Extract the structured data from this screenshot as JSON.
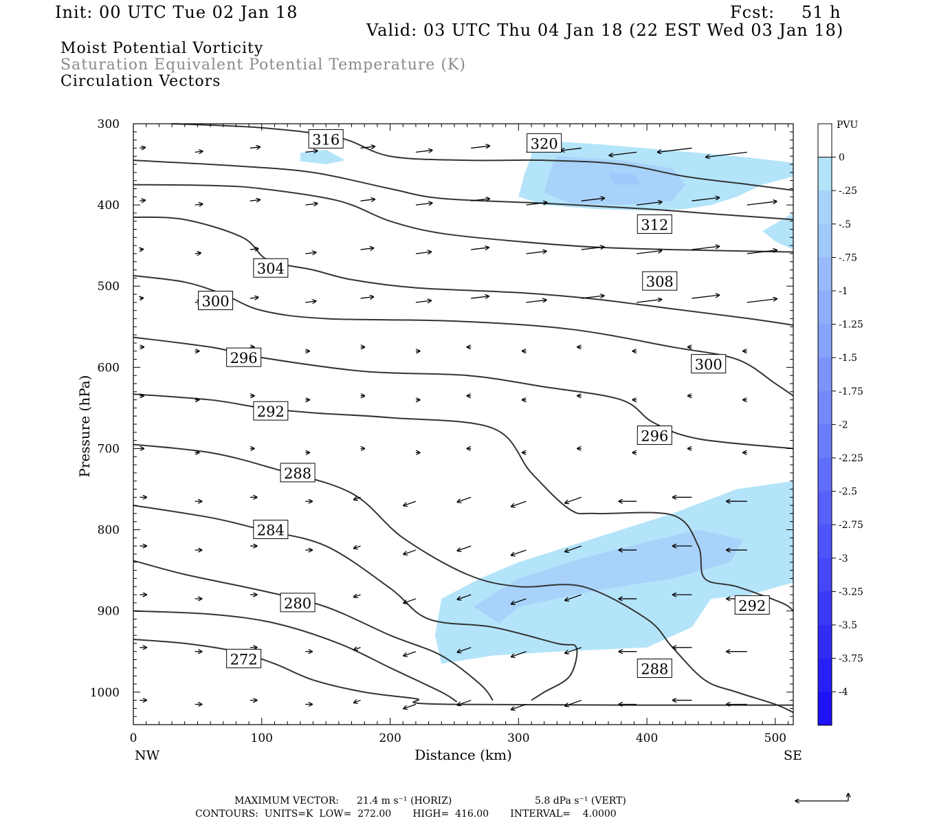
{
  "header": {
    "init": "Init: 00 UTC Tue 02 Jan 18",
    "fcst_label": "Fcst:",
    "fcst_value": "51 h",
    "valid": "Valid: 03 UTC Thu 04 Jan 18 (22 EST Wed 03 Jan 18)",
    "field1": "Moist Potential Vorticity",
    "field2": "Saturation Equivalent Potential Temperature (K)",
    "field3": "Circulation Vectors"
  },
  "footer": {
    "max_vector_label": "MAXIMUM VECTOR:",
    "horiz_value": "21.4 m s⁻¹ (HORIZ)",
    "vert_value": "5.8 dPa s⁻¹ (VERT)",
    "contours_line": "CONTOURS:  UNITS=K  LOW=  272.00       HIGH=  416.00       INTERVAL=    4.0000"
  },
  "colors": {
    "contour": "#333333",
    "axis": "#000000",
    "pv_ramp": [
      "#ffffff",
      "#ffffff",
      "#b4e4fa",
      "#a9d2fa",
      "#a0c8fa",
      "#98bafa",
      "#8eaefa",
      "#86a2fa",
      "#7c94fa",
      "#7488fa",
      "#6a7cfa",
      "#606efa",
      "#5860fa",
      "#4e54fa",
      "#4646fa",
      "#3c3afa",
      "#322cfa",
      "#2820fa",
      "#1e12fa",
      "#0e00fa"
    ]
  },
  "chart_data": {
    "type": "cross-section",
    "xlabel": "Distance (km)",
    "ylabel": "Pressure (hPa)",
    "xlim": [
      0,
      514
    ],
    "ylim": [
      300,
      1040
    ],
    "y_scale": "linear, pressure increasing downward",
    "x_ticks": [
      "0",
      "100",
      "200",
      "300",
      "400",
      "500"
    ],
    "y_ticks": [
      "300",
      "400",
      "500",
      "600",
      "700",
      "800",
      "900",
      "1000"
    ],
    "x_end_labels": {
      "left": "NW",
      "right": "SE"
    },
    "colorbar": {
      "units": "PVU",
      "labels": [
        "0",
        "-.25",
        "-.5",
        "-.75",
        "-1",
        "-1.25",
        "-1.5",
        "-1.75",
        "-2",
        "-2.25",
        "-2.5",
        "-2.75",
        "-3",
        "-3.25",
        "-3.5",
        "-3.75",
        "-4"
      ]
    },
    "contour_labels": [
      {
        "text": "316",
        "x": 150,
        "p": 319
      },
      {
        "text": "320",
        "x": 320,
        "p": 324
      },
      {
        "text": "312",
        "x": 406,
        "p": 424
      },
      {
        "text": "304",
        "x": 107,
        "p": 478
      },
      {
        "text": "308",
        "x": 410,
        "p": 494
      },
      {
        "text": "300",
        "x": 64,
        "p": 518
      },
      {
        "text": "296",
        "x": 86,
        "p": 588
      },
      {
        "text": "300",
        "x": 448,
        "p": 596
      },
      {
        "text": "292",
        "x": 107,
        "p": 654
      },
      {
        "text": "296",
        "x": 406,
        "p": 684
      },
      {
        "text": "288",
        "x": 128,
        "p": 730
      },
      {
        "text": "284",
        "x": 107,
        "p": 800
      },
      {
        "text": "292",
        "x": 482,
        "p": 893
      },
      {
        "text": "280",
        "x": 128,
        "p": 890
      },
      {
        "text": "272",
        "x": 86,
        "p": 959
      },
      {
        "text": "288",
        "x": 406,
        "p": 971
      }
    ],
    "contour_units": "K",
    "contour_low": 272,
    "contour_high": 416,
    "contour_interval": 4,
    "contours": [
      {
        "level": 316,
        "points": [
          [
            30,
            300
          ],
          [
            100,
            305
          ],
          [
            160,
            317
          ],
          [
            200,
            340
          ],
          [
            260,
            345
          ],
          [
            320,
            345
          ],
          [
            380,
            350
          ],
          [
            430,
            365
          ],
          [
            480,
            375
          ],
          [
            514,
            382
          ]
        ]
      },
      {
        "level": 312,
        "points": [
          [
            0,
            345
          ],
          [
            80,
            352
          ],
          [
            140,
            360
          ],
          [
            200,
            380
          ],
          [
            240,
            392
          ],
          [
            320,
            398
          ],
          [
            400,
            405
          ],
          [
            460,
            412
          ],
          [
            514,
            418
          ]
        ]
      },
      {
        "level": 308,
        "points": [
          [
            0,
            375
          ],
          [
            60,
            376
          ],
          [
            100,
            380
          ],
          [
            160,
            395
          ],
          [
            200,
            420
          ],
          [
            240,
            435
          ],
          [
            300,
            445
          ],
          [
            360,
            452
          ],
          [
            420,
            455
          ],
          [
            514,
            458
          ]
        ]
      },
      {
        "level": 304,
        "points": [
          [
            0,
            415
          ],
          [
            40,
            418
          ],
          [
            85,
            440
          ],
          [
            105,
            468
          ],
          [
            140,
            480
          ],
          [
            170,
            492
          ],
          [
            220,
            502
          ],
          [
            300,
            508
          ],
          [
            360,
            516
          ],
          [
            420,
            528
          ],
          [
            480,
            540
          ],
          [
            514,
            548
          ]
        ]
      },
      {
        "level": 300,
        "points": [
          [
            0,
            487
          ],
          [
            40,
            495
          ],
          [
            70,
            510
          ],
          [
            100,
            530
          ],
          [
            150,
            540
          ],
          [
            250,
            543
          ],
          [
            340,
            553
          ],
          [
            420,
            575
          ],
          [
            470,
            590
          ],
          [
            500,
            620
          ],
          [
            514,
            635
          ]
        ]
      },
      {
        "level": 296,
        "points": [
          [
            0,
            563
          ],
          [
            60,
            575
          ],
          [
            100,
            588
          ],
          [
            180,
            605
          ],
          [
            260,
            610
          ],
          [
            320,
            624
          ],
          [
            380,
            640
          ],
          [
            405,
            668
          ],
          [
            440,
            688
          ],
          [
            514,
            700
          ]
        ]
      },
      {
        "level": 292,
        "points": [
          [
            0,
            633
          ],
          [
            60,
            640
          ],
          [
            100,
            650
          ],
          [
            140,
            656
          ],
          [
            200,
            662
          ],
          [
            280,
            675
          ],
          [
            310,
            730
          ],
          [
            340,
            775
          ],
          [
            360,
            780
          ],
          [
            420,
            782
          ],
          [
            440,
            820
          ],
          [
            445,
            860
          ],
          [
            470,
            870
          ],
          [
            505,
            890
          ],
          [
            514,
            900
          ]
        ]
      },
      {
        "level": 288,
        "points": [
          [
            0,
            695
          ],
          [
            60,
            705
          ],
          [
            110,
            725
          ],
          [
            170,
            755
          ],
          [
            210,
            810
          ],
          [
            260,
            855
          ],
          [
            300,
            870
          ],
          [
            350,
            870
          ],
          [
            400,
            910
          ],
          [
            420,
            945
          ],
          [
            445,
            985
          ],
          [
            470,
            1000
          ],
          [
            500,
            1015
          ],
          [
            514,
            1025
          ]
        ]
      },
      {
        "level": 284,
        "points": [
          [
            0,
            770
          ],
          [
            60,
            785
          ],
          [
            100,
            800
          ],
          [
            150,
            820
          ],
          [
            200,
            872
          ],
          [
            230,
            910
          ],
          [
            280,
            920
          ],
          [
            330,
            940
          ],
          [
            345,
            945
          ],
          [
            340,
            980
          ],
          [
            320,
            1000
          ],
          [
            310,
            1010
          ]
        ]
      },
      {
        "level": 280,
        "points": [
          [
            0,
            838
          ],
          [
            40,
            855
          ],
          [
            100,
            875
          ],
          [
            150,
            895
          ],
          [
            200,
            930
          ],
          [
            240,
            955
          ],
          [
            270,
            990
          ],
          [
            280,
            1010
          ]
        ]
      },
      {
        "level": 276,
        "points": [
          [
            0,
            900
          ],
          [
            60,
            904
          ],
          [
            110,
            915
          ],
          [
            160,
            940
          ],
          [
            200,
            970
          ],
          [
            240,
            1000
          ],
          [
            252,
            1012
          ]
        ]
      },
      {
        "level": 272,
        "points": [
          [
            0,
            935
          ],
          [
            40,
            940
          ],
          [
            80,
            950
          ],
          [
            110,
            965
          ],
          [
            140,
            985
          ],
          [
            180,
            1000
          ],
          [
            220,
            1008
          ],
          [
            245,
            1015
          ],
          [
            514,
            1016
          ]
        ]
      }
    ],
    "pv_regions": [
      {
        "level": -0.25,
        "points": [
          [
            310,
            320
          ],
          [
            360,
            325
          ],
          [
            420,
            333
          ],
          [
            470,
            340
          ],
          [
            514,
            348
          ],
          [
            514,
            365
          ],
          [
            490,
            375
          ],
          [
            470,
            390
          ],
          [
            450,
            400
          ],
          [
            430,
            405
          ],
          [
            400,
            407
          ],
          [
            360,
            405
          ],
          [
            320,
            400
          ],
          [
            300,
            390
          ],
          [
            305,
            360
          ],
          [
            310,
            340
          ]
        ]
      },
      {
        "level": -0.25,
        "points": [
          [
            130,
            336
          ],
          [
            150,
            332
          ],
          [
            165,
            345
          ],
          [
            150,
            350
          ],
          [
            130,
            346
          ]
        ]
      },
      {
        "level": -0.5,
        "points": [
          [
            330,
            340
          ],
          [
            380,
            345
          ],
          [
            420,
            355
          ],
          [
            430,
            375
          ],
          [
            420,
            395
          ],
          [
            380,
            400
          ],
          [
            340,
            398
          ],
          [
            320,
            385
          ],
          [
            325,
            355
          ]
        ]
      },
      {
        "level": -0.75,
        "points": [
          [
            370,
            360
          ],
          [
            390,
            362
          ],
          [
            395,
            375
          ],
          [
            375,
            375
          ]
        ]
      },
      {
        "level": -0.25,
        "points": [
          [
            490,
            432
          ],
          [
            514,
            410
          ],
          [
            514,
            455
          ],
          [
            500,
            445
          ]
        ]
      },
      {
        "level": -0.25,
        "points": [
          [
            240,
            885
          ],
          [
            270,
            860
          ],
          [
            300,
            840
          ],
          [
            360,
            810
          ],
          [
            420,
            780
          ],
          [
            470,
            750
          ],
          [
            514,
            740
          ],
          [
            514,
            865
          ],
          [
            480,
            880
          ],
          [
            450,
            885
          ],
          [
            435,
            920
          ],
          [
            400,
            945
          ],
          [
            330,
            950
          ],
          [
            280,
            955
          ],
          [
            240,
            965
          ],
          [
            235,
            930
          ]
        ]
      },
      {
        "level": -0.5,
        "points": [
          [
            265,
            895
          ],
          [
            300,
            860
          ],
          [
            350,
            835
          ],
          [
            400,
            815
          ],
          [
            440,
            800
          ],
          [
            475,
            812
          ],
          [
            465,
            840
          ],
          [
            420,
            860
          ],
          [
            360,
            875
          ],
          [
            300,
            895
          ],
          [
            285,
            915
          ]
        ]
      }
    ]
  }
}
